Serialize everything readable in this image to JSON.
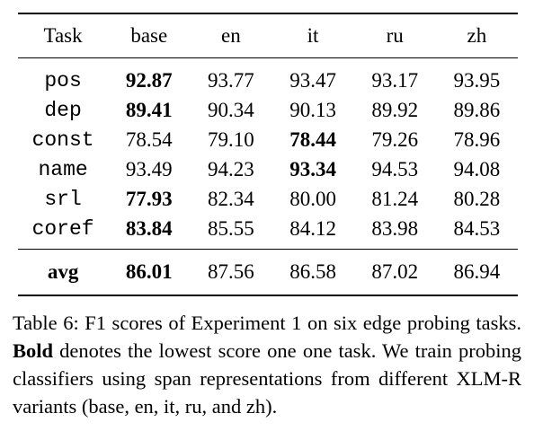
{
  "table": {
    "columns": [
      "Task",
      "base",
      "en",
      "it",
      "ru",
      "zh"
    ],
    "rows": [
      {
        "task": "pos",
        "values": [
          "92.87",
          "93.77",
          "93.47",
          "93.17",
          "93.95"
        ],
        "bold": [
          true,
          false,
          false,
          false,
          false
        ]
      },
      {
        "task": "dep",
        "values": [
          "89.41",
          "90.34",
          "90.13",
          "89.92",
          "89.86"
        ],
        "bold": [
          true,
          false,
          false,
          false,
          false
        ]
      },
      {
        "task": "const",
        "values": [
          "78.54",
          "79.10",
          "78.44",
          "79.26",
          "78.96"
        ],
        "bold": [
          false,
          false,
          true,
          false,
          false
        ]
      },
      {
        "task": "name",
        "values": [
          "93.49",
          "94.23",
          "93.34",
          "94.53",
          "94.08"
        ],
        "bold": [
          false,
          false,
          true,
          false,
          false
        ]
      },
      {
        "task": "srl",
        "values": [
          "77.93",
          "82.34",
          "80.00",
          "81.24",
          "80.28"
        ],
        "bold": [
          true,
          false,
          false,
          false,
          false
        ]
      },
      {
        "task": "coref",
        "values": [
          "83.84",
          "85.55",
          "84.12",
          "83.98",
          "84.53"
        ],
        "bold": [
          true,
          false,
          false,
          false,
          false
        ]
      }
    ],
    "avg_row": {
      "task": "avg",
      "values": [
        "86.01",
        "87.56",
        "86.58",
        "87.02",
        "86.94"
      ],
      "bold": [
        true,
        false,
        false,
        false,
        false
      ]
    }
  },
  "caption": {
    "part1": "Table 6: F1 scores of Experiment 1 on six edge probing tasks. ",
    "bold_word": "Bold",
    "part2": " denotes the lowest score one one task. We train probing classifiers using span representations from different XLM-R variants (base, en, it, ru, and zh)."
  }
}
